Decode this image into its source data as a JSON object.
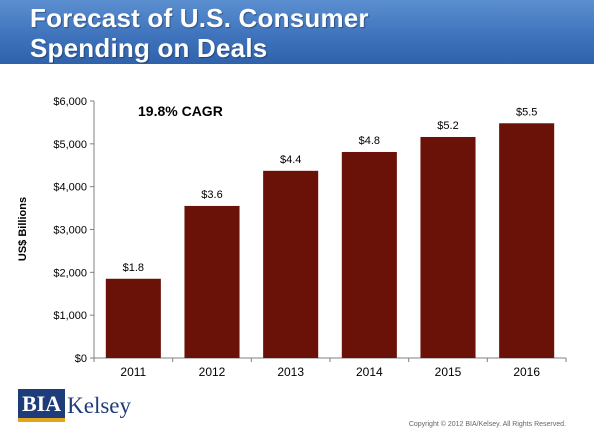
{
  "header": {
    "title": "Forecast of U.S. Consumer\nSpending on Deals"
  },
  "chart_data": {
    "type": "bar",
    "categories": [
      "2011",
      "2012",
      "2013",
      "2014",
      "2015",
      "2016"
    ],
    "values": [
      1850,
      3550,
      4370,
      4810,
      5160,
      5480
    ],
    "data_labels": [
      "$1.8",
      "$3.6",
      "$4.4",
      "$4.8",
      "$5.2",
      "$5.5"
    ],
    "ylabel": "US$ Billions",
    "ylim": [
      0,
      6000
    ],
    "yticks": [
      0,
      1000,
      2000,
      3000,
      4000,
      5000,
      6000
    ],
    "ytick_labels": [
      "$0",
      "$1,000",
      "$2,000",
      "$3,000",
      "$4,000",
      "$5,000",
      "$6,000"
    ],
    "annotation": "19.8% CAGR",
    "bar_color": "#6b1208",
    "grid": false
  },
  "logo": {
    "bia": "BIA",
    "kelsey": "Kelsey"
  },
  "footer": {
    "copyright": "Copyright © 2012 BIA/Kelsey. All Rights Reserved."
  }
}
